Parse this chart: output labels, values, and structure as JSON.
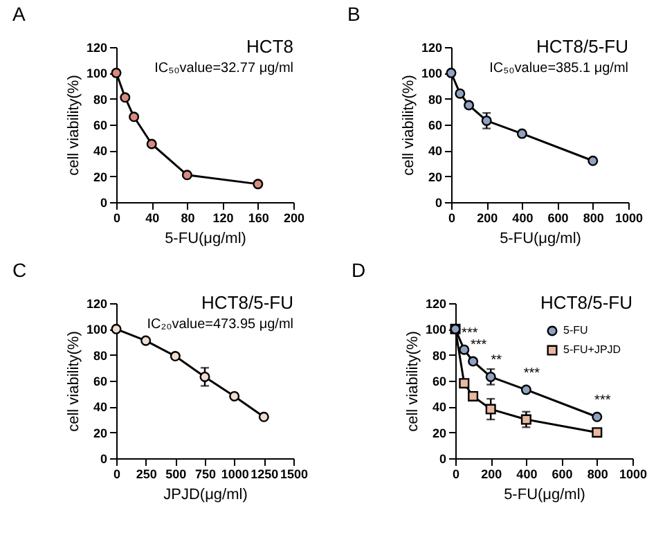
{
  "chart_data": [
    {
      "type": "line",
      "title": "A",
      "xlabel": "5-FU(μg/ml)",
      "ylabel": "cell viability(%)",
      "annotations": [
        "HCT8",
        "IC₅₀value=32.77 μg/ml"
      ],
      "x": [
        0,
        10,
        20,
        40,
        80,
        160
      ],
      "marker": "circle",
      "xlim": [
        0,
        200
      ],
      "xticks": [
        0,
        40,
        80,
        120,
        160,
        200
      ],
      "ylim": [
        0,
        120
      ],
      "yticks": [
        0,
        20,
        40,
        60,
        80,
        100,
        120
      ],
      "series": [
        {
          "color": "#d98b80",
          "values": [
            100,
            81,
            66,
            45,
            21,
            14
          ]
        }
      ]
    },
    {
      "type": "line",
      "title": "B",
      "xlabel": "5-FU(μg/ml)",
      "ylabel": "cell viability(%)",
      "annotations": [
        "HCT8/5-FU",
        "IC₅₀value=385.1 μg/ml"
      ],
      "x": [
        0,
        50,
        100,
        200,
        400,
        800
      ],
      "marker": "circle",
      "xlim": [
        0,
        1000
      ],
      "xticks": [
        0,
        200,
        400,
        600,
        800,
        1000
      ],
      "ylim": [
        0,
        120
      ],
      "yticks": [
        0,
        20,
        40,
        60,
        80,
        100,
        120
      ],
      "series": [
        {
          "color": "#8fa3c0",
          "values": [
            100,
            84,
            75,
            63,
            53,
            32
          ],
          "errors": [
            null,
            2,
            2,
            6,
            null,
            null
          ]
        }
      ]
    },
    {
      "type": "line",
      "title": "C",
      "xlabel": "JPJD(μg/ml)",
      "ylabel": "cell viability(%)",
      "annotations": [
        "HCT8/5-FU",
        "IC₂₀value=473.95 μg/ml"
      ],
      "x": [
        0,
        250,
        500,
        750,
        1000,
        1250
      ],
      "marker": "circle",
      "xlim": [
        0,
        1500
      ],
      "xticks": [
        0,
        250,
        500,
        750,
        1000,
        1250,
        1500
      ],
      "ylim": [
        0,
        120
      ],
      "yticks": [
        0,
        20,
        40,
        60,
        80,
        100,
        120
      ],
      "series": [
        {
          "color": "#f0ddd0",
          "values": [
            100,
            91,
            79,
            63,
            48,
            32
          ],
          "errors": [
            null,
            null,
            2,
            7,
            null,
            null
          ]
        }
      ]
    },
    {
      "type": "line",
      "title": "D",
      "xlabel": "5-FU(μg/ml)",
      "ylabel": "cell viability(%)",
      "annotations": [
        "HCT8/5-FU",
        {
          "text": "***",
          "x": 50,
          "y": 84
        },
        {
          "text": "***",
          "x": 100,
          "y": 75
        },
        {
          "text": "**",
          "x": 200,
          "y": 63
        },
        {
          "text": "***",
          "x": 400,
          "y": 53
        },
        {
          "text": "***",
          "x": 800,
          "y": 32
        }
      ],
      "x": [
        0,
        50,
        100,
        200,
        400,
        800
      ],
      "legend": "top right",
      "xlim": [
        0,
        1000
      ],
      "xticks": [
        0,
        200,
        400,
        600,
        800,
        1000
      ],
      "ylim": [
        0,
        120
      ],
      "yticks": [
        0,
        20,
        40,
        60,
        80,
        100,
        120
      ],
      "series": [
        {
          "name": "5-FU",
          "color": "#8fa3c0",
          "marker": "circle",
          "values": [
            100,
            84,
            75,
            63,
            53,
            32
          ],
          "errors": [
            null,
            2,
            2,
            6,
            null,
            null
          ]
        },
        {
          "name": "5-FU+JPJD",
          "color": "#e8b8a0",
          "marker": "square",
          "values": [
            100,
            58,
            48,
            38,
            30,
            20
          ],
          "errors": [
            null,
            2,
            3,
            8,
            6,
            1
          ]
        }
      ]
    }
  ]
}
